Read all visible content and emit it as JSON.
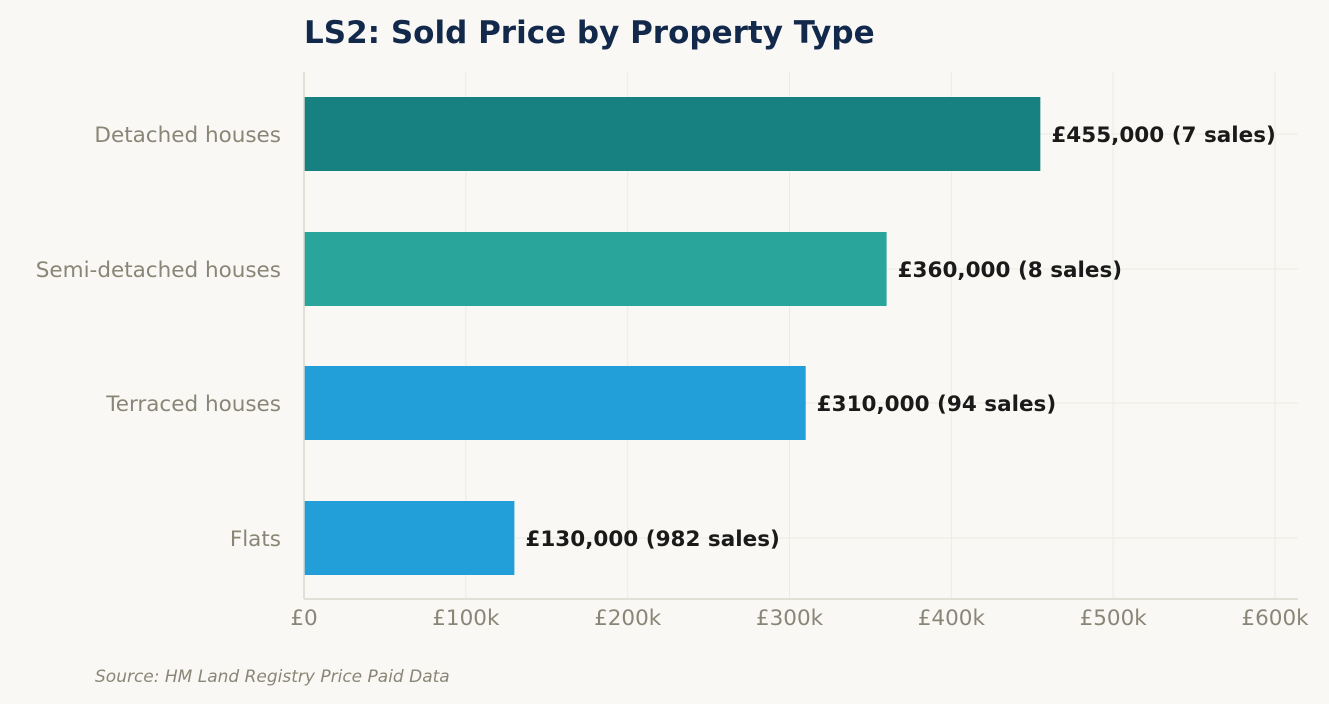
{
  "chart_data": {
    "type": "bar",
    "orientation": "horizontal",
    "title": "LS2: Sold Price by Property Type",
    "categories": [
      "Detached houses",
      "Semi-detached houses",
      "Terraced houses",
      "Flats"
    ],
    "values": [
      455000,
      360000,
      310000,
      130000
    ],
    "sales": [
      7,
      8,
      94,
      982
    ],
    "value_labels": [
      "£455,000  (7 sales)",
      "£360,000  (8 sales)",
      "£310,000  (94 sales)",
      "£130,000  (982 sales)"
    ],
    "bar_colors": [
      "#178080",
      "#2aa59b",
      "#229ed9",
      "#229ed9"
    ],
    "xlim": [
      0,
      600000
    ],
    "x_ticks": [
      0,
      100000,
      200000,
      300000,
      400000,
      500000,
      600000
    ],
    "x_tick_labels": [
      "£0",
      "£100k",
      "£200k",
      "£300k",
      "£400k",
      "£500k",
      "£600k"
    ],
    "xlabel": "",
    "ylabel": "",
    "grid": true,
    "legend": "none"
  },
  "source_note": "Source: HM Land Registry Price Paid Data"
}
